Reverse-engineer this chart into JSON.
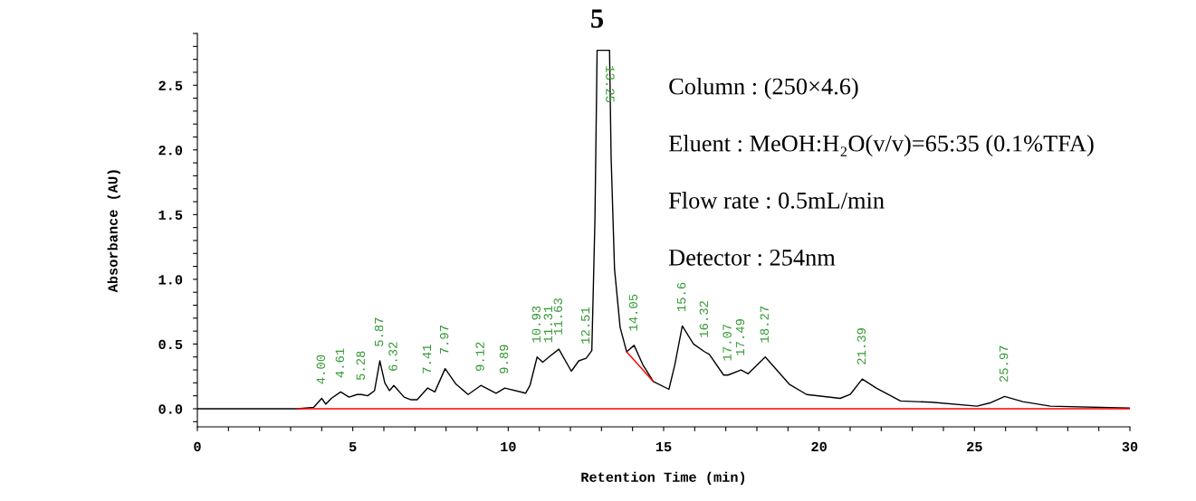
{
  "chart_data": {
    "type": "line",
    "title": "5",
    "xlabel": "Retention Time (min)",
    "ylabel": "Absorbance (AU)",
    "xlim": [
      0,
      30
    ],
    "ylim": [
      -0.14,
      2.9
    ],
    "xticks": [
      0,
      {
        "value": 1,
        "label": null
      },
      {
        "value": 2,
        "label": null
      },
      {
        "value": 3,
        "label": null
      },
      {
        "value": 4,
        "label": null
      },
      5,
      {
        "value": 6,
        "label": null
      },
      {
        "value": 7,
        "label": null
      },
      {
        "value": 8,
        "label": null
      },
      {
        "value": 9,
        "label": null
      },
      10,
      {
        "value": 11,
        "label": null
      },
      {
        "value": 12,
        "label": null
      },
      {
        "value": 13,
        "label": null
      },
      {
        "value": 14,
        "label": null
      },
      15,
      {
        "value": 16,
        "label": null
      },
      {
        "value": 17,
        "label": null
      },
      {
        "value": 18,
        "label": null
      },
      {
        "value": 19,
        "label": null
      },
      20,
      {
        "value": 21,
        "label": null
      },
      {
        "value": 22,
        "label": null
      },
      {
        "value": 23,
        "label": null
      },
      {
        "value": 24,
        "label": null
      },
      25,
      {
        "value": 26,
        "label": null
      },
      {
        "value": 27,
        "label": null
      },
      {
        "value": 28,
        "label": null
      },
      {
        "value": 29,
        "label": null
      },
      30
    ],
    "yticks": [
      {
        "value": -0.1,
        "label": null
      },
      {
        "value": 0.0,
        "label": "0.0"
      },
      {
        "value": 0.1,
        "label": null
      },
      {
        "value": 0.2,
        "label": null
      },
      {
        "value": 0.3,
        "label": null
      },
      {
        "value": 0.4,
        "label": null
      },
      0.5,
      {
        "value": 0.6,
        "label": null
      },
      {
        "value": 0.7,
        "label": null
      },
      {
        "value": 0.8,
        "label": null
      },
      {
        "value": 0.9,
        "label": null
      },
      {
        "value": 1.0,
        "label": "1.0"
      },
      {
        "value": 1.1,
        "label": null
      },
      {
        "value": 1.2,
        "label": null
      },
      {
        "value": 1.3,
        "label": null
      },
      {
        "value": 1.4,
        "label": null
      },
      1.5,
      {
        "value": 1.6,
        "label": null
      },
      {
        "value": 1.7,
        "label": null
      },
      {
        "value": 1.8,
        "label": null
      },
      {
        "value": 1.9,
        "label": null
      },
      {
        "value": 2.0,
        "label": "2.0"
      },
      {
        "value": 2.1,
        "label": null
      },
      {
        "value": 2.2,
        "label": null
      },
      {
        "value": 2.3,
        "label": null
      },
      {
        "value": 2.4,
        "label": null
      },
      2.5,
      {
        "value": 2.6,
        "label": null
      },
      {
        "value": 2.7,
        "label": null
      },
      {
        "value": 2.8,
        "label": null
      },
      {
        "value": 2.9,
        "label": null
      }
    ],
    "grid": false,
    "legend": false,
    "series": [
      {
        "color": "#000000",
        "x": [
          0,
          3.22,
          3.74,
          4.0,
          4.13,
          4.31,
          4.61,
          4.88,
          5.14,
          5.28,
          5.48,
          5.7,
          5.87,
          6.03,
          6.18,
          6.32,
          6.65,
          6.86,
          7.07,
          7.41,
          7.64,
          7.97,
          8.32,
          8.71,
          9.12,
          9.61,
          9.89,
          10.56,
          10.7,
          10.93,
          11.11,
          11.31,
          11.63,
          12.03,
          12.27,
          12.51,
          12.69,
          12.79,
          12.86,
          13.26,
          13.31,
          13.42,
          13.6,
          13.81,
          14.05,
          14.33,
          14.67,
          15.17,
          15.36,
          15.6,
          15.96,
          16.32,
          16.47,
          16.93,
          17.07,
          17.49,
          17.72,
          18.27,
          19.04,
          19.6,
          20.68,
          21.0,
          21.39,
          21.84,
          22.62,
          23.62,
          25.08,
          25.5,
          25.97,
          26.55,
          27.44,
          30.0
        ],
        "values": [
          0,
          0,
          0.01,
          0.08,
          0.035,
          0.08,
          0.13,
          0.09,
          0.11,
          0.11,
          0.1,
          0.14,
          0.37,
          0.2,
          0.14,
          0.18,
          0.09,
          0.07,
          0.07,
          0.16,
          0.13,
          0.31,
          0.19,
          0.11,
          0.18,
          0.12,
          0.16,
          0.12,
          0.18,
          0.4,
          0.36,
          0.4,
          0.46,
          0.29,
          0.37,
          0.39,
          0.45,
          1.46,
          2.77,
          2.77,
          1.95,
          1.08,
          0.63,
          0.44,
          0.49,
          0.34,
          0.21,
          0.15,
          0.34,
          0.64,
          0.5,
          0.44,
          0.42,
          0.26,
          0.26,
          0.3,
          0.27,
          0.4,
          0.19,
          0.11,
          0.08,
          0.11,
          0.23,
          0.16,
          0.06,
          0.05,
          0.02,
          0.045,
          0.095,
          0.055,
          0.02,
          0.005
        ]
      },
      {
        "color": "#ff0000",
        "x": [
          3.22,
          30.0
        ],
        "values": [
          0,
          0
        ]
      },
      {
        "color": "#ff0000",
        "x": [
          13.81,
          14.67
        ],
        "values": [
          0.44,
          0.21
        ]
      }
    ],
    "annotations": [
      {
        "text": "4.00",
        "x": 4.0,
        "y": 0.08
      },
      {
        "text": "4.61",
        "x": 4.61,
        "y": 0.13
      },
      {
        "text": "5.28",
        "x": 5.28,
        "y": 0.11
      },
      {
        "text": "5.87",
        "x": 5.87,
        "y": 0.37
      },
      {
        "text": "6.32",
        "x": 6.32,
        "y": 0.18
      },
      {
        "text": "7.41",
        "x": 7.41,
        "y": 0.16
      },
      {
        "text": "7.97",
        "x": 7.97,
        "y": 0.31
      },
      {
        "text": "9.12",
        "x": 9.12,
        "y": 0.18
      },
      {
        "text": "9.89",
        "x": 9.89,
        "y": 0.16
      },
      {
        "text": "10.93",
        "x": 10.93,
        "y": 0.4
      },
      {
        "text": "11.31",
        "x": 11.31,
        "y": 0.4
      },
      {
        "text": "11.63",
        "x": 11.63,
        "y": 0.46
      },
      {
        "text": "12.51",
        "x": 12.51,
        "y": 0.39
      },
      {
        "text": "13.25",
        "x": 13.25,
        "y": 2.77
      },
      {
        "text": "14.05",
        "x": 14.05,
        "y": 0.49
      },
      {
        "text": "15.6",
        "x": 15.6,
        "y": 0.64
      },
      {
        "text": "16.32",
        "x": 16.32,
        "y": 0.44
      },
      {
        "text": "17.07",
        "x": 17.07,
        "y": 0.26
      },
      {
        "text": "17.49",
        "x": 17.49,
        "y": 0.3
      },
      {
        "text": "18.27",
        "x": 18.27,
        "y": 0.4
      },
      {
        "text": "21.39",
        "x": 21.39,
        "y": 0.23
      },
      {
        "text": "25.97",
        "x": 25.97,
        "y": 0.095
      },
      "Column : (250×4.6)",
      "Eluent : MeOH:H₂O(v/v)=65:35 (0.1%TFA)",
      "Flow rate : 0.5mL/min",
      "Detector : 254nm"
    ]
  }
}
